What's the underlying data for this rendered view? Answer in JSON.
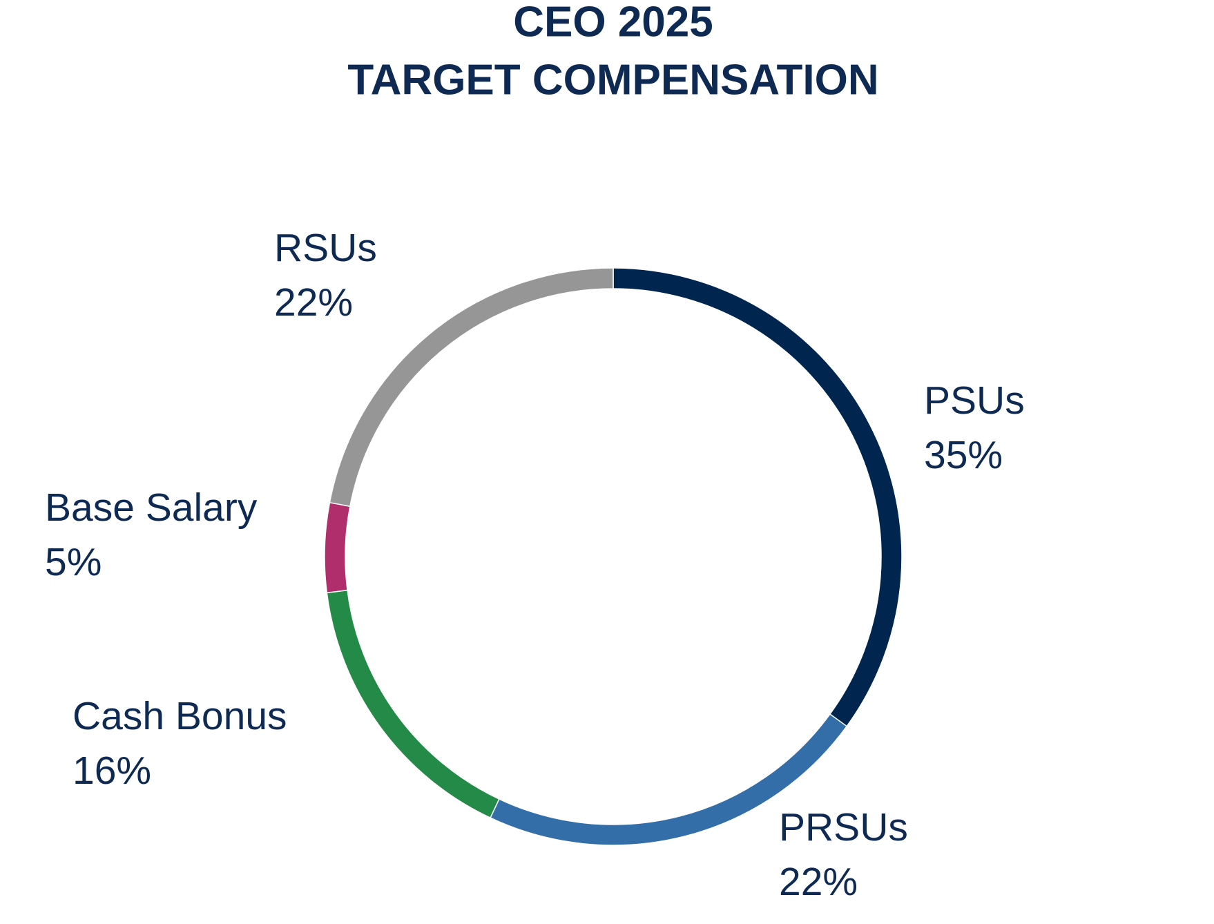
{
  "chart_data": {
    "type": "donut",
    "title": [
      "CEO 2025",
      "TARGET COMPENSATION"
    ],
    "categories": [
      "PSUs",
      "PRSUs",
      "Cash Bonus",
      "Base Salary",
      "RSUs"
    ],
    "values": [
      35,
      22,
      16,
      5,
      22
    ],
    "value_labels": [
      "35%",
      "22%",
      "16%",
      "5%",
      "22%"
    ],
    "colors": [
      "#00264f",
      "#336ea8",
      "#238a47",
      "#b02e6c",
      "#969696"
    ]
  }
}
